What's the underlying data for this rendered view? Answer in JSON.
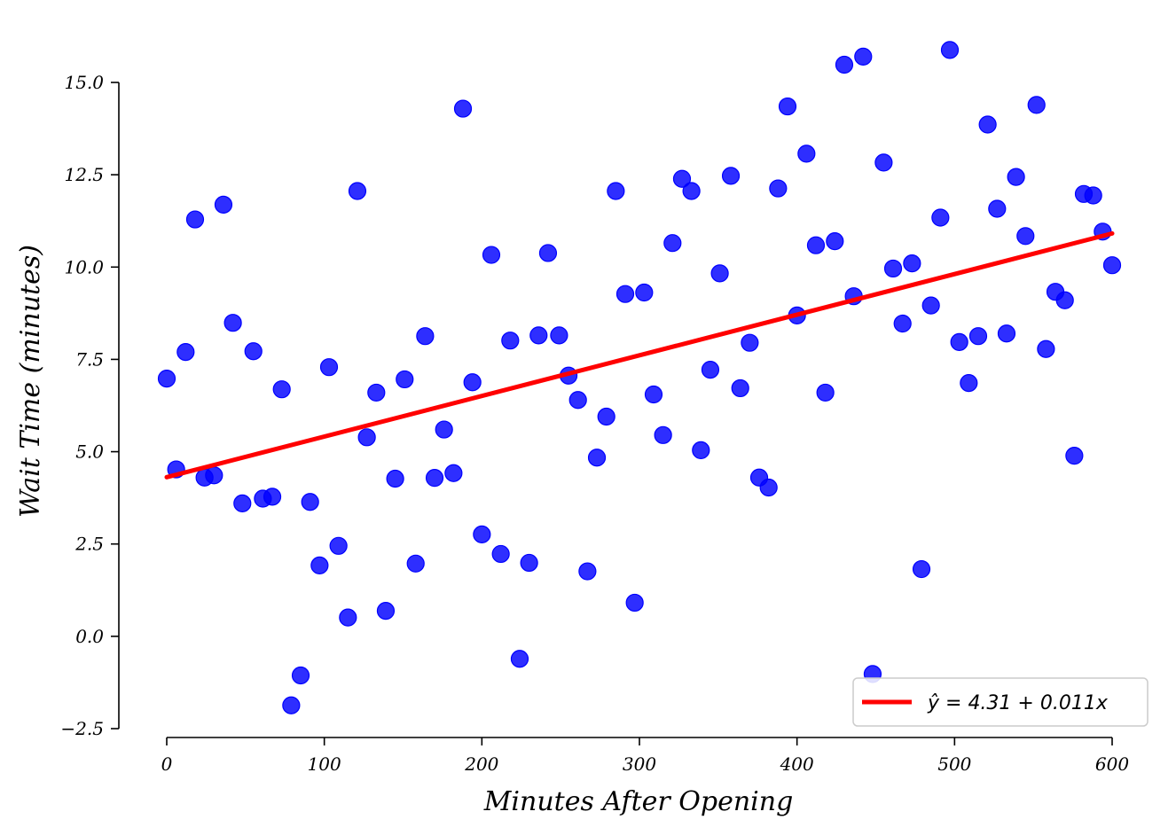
{
  "chart_data": {
    "type": "scatter",
    "xlabel": "Minutes After Opening",
    "ylabel": "Wait Time (minutes)",
    "xlim": [
      0,
      600
    ],
    "ylim": [
      -2.5,
      15.0
    ],
    "x_ticks": [
      0,
      100,
      200,
      300,
      400,
      500,
      600
    ],
    "x_tick_labels": [
      "0",
      "100",
      "200",
      "300",
      "400",
      "500",
      "600"
    ],
    "y_ticks": [
      -2.5,
      0.0,
      2.5,
      5.0,
      7.5,
      10.0,
      12.5,
      15.0
    ],
    "y_tick_labels": [
      "−2.5",
      "0.0",
      "2.5",
      "5.0",
      "7.5",
      "10.0",
      "12.5",
      "15.0"
    ],
    "grid": false,
    "legend_position": "lower-right",
    "points_color": "#0000ff",
    "line_color": "#ff0000",
    "fit_line": {
      "intercept": 4.31,
      "slope": 0.011,
      "label": "ŷ = 4.31 + 0.011x"
    },
    "points": [
      [
        0,
        6.98
      ],
      [
        6,
        4.52
      ],
      [
        12,
        7.7
      ],
      [
        18,
        11.29
      ],
      [
        24,
        4.3
      ],
      [
        30,
        4.36
      ],
      [
        36,
        11.69
      ],
      [
        42,
        8.49
      ],
      [
        48,
        3.6
      ],
      [
        55,
        7.72
      ],
      [
        61,
        3.73
      ],
      [
        67,
        3.78
      ],
      [
        73,
        6.69
      ],
      [
        79,
        -1.87
      ],
      [
        85,
        -1.06
      ],
      [
        91,
        3.64
      ],
      [
        97,
        1.92
      ],
      [
        103,
        7.29
      ],
      [
        109,
        2.45
      ],
      [
        115,
        0.51
      ],
      [
        121,
        12.06
      ],
      [
        127,
        5.39
      ],
      [
        133,
        6.6
      ],
      [
        139,
        0.69
      ],
      [
        145,
        4.27
      ],
      [
        151,
        6.96
      ],
      [
        158,
        1.97
      ],
      [
        164,
        8.13
      ],
      [
        170,
        4.29
      ],
      [
        176,
        5.6
      ],
      [
        182,
        4.42
      ],
      [
        188,
        14.29
      ],
      [
        194,
        6.88
      ],
      [
        200,
        2.76
      ],
      [
        206,
        10.33
      ],
      [
        212,
        2.23
      ],
      [
        218,
        8.01
      ],
      [
        224,
        -0.61
      ],
      [
        230,
        1.99
      ],
      [
        236,
        8.15
      ],
      [
        242,
        10.38
      ],
      [
        249,
        8.15
      ],
      [
        255,
        7.06
      ],
      [
        261,
        6.4
      ],
      [
        267,
        1.76
      ],
      [
        273,
        4.84
      ],
      [
        279,
        5.95
      ],
      [
        285,
        12.06
      ],
      [
        291,
        9.27
      ],
      [
        297,
        0.91
      ],
      [
        303,
        9.31
      ],
      [
        309,
        6.55
      ],
      [
        315,
        5.45
      ],
      [
        321,
        10.65
      ],
      [
        327,
        12.39
      ],
      [
        333,
        12.06
      ],
      [
        339,
        5.04
      ],
      [
        345,
        7.22
      ],
      [
        351,
        9.83
      ],
      [
        358,
        12.47
      ],
      [
        364,
        6.72
      ],
      [
        370,
        7.95
      ],
      [
        376,
        4.3
      ],
      [
        382,
        4.03
      ],
      [
        388,
        12.13
      ],
      [
        394,
        14.35
      ],
      [
        400,
        8.69
      ],
      [
        406,
        13.07
      ],
      [
        412,
        10.59
      ],
      [
        418,
        6.6
      ],
      [
        424,
        10.7
      ],
      [
        430,
        15.48
      ],
      [
        436,
        9.21
      ],
      [
        442,
        15.7
      ],
      [
        448,
        -1.02
      ],
      [
        455,
        12.83
      ],
      [
        461,
        9.96
      ],
      [
        467,
        8.47
      ],
      [
        473,
        10.1
      ],
      [
        479,
        1.82
      ],
      [
        485,
        8.96
      ],
      [
        491,
        11.34
      ],
      [
        497,
        15.88
      ],
      [
        503,
        7.97
      ],
      [
        509,
        6.86
      ],
      [
        515,
        8.13
      ],
      [
        521,
        13.86
      ],
      [
        527,
        11.58
      ],
      [
        533,
        8.2
      ],
      [
        539,
        12.44
      ],
      [
        545,
        10.84
      ],
      [
        552,
        14.39
      ],
      [
        558,
        7.78
      ],
      [
        564,
        9.33
      ],
      [
        570,
        9.1
      ],
      [
        576,
        4.89
      ],
      [
        582,
        11.98
      ],
      [
        588,
        11.94
      ],
      [
        594,
        10.96
      ],
      [
        600,
        10.05
      ]
    ]
  }
}
